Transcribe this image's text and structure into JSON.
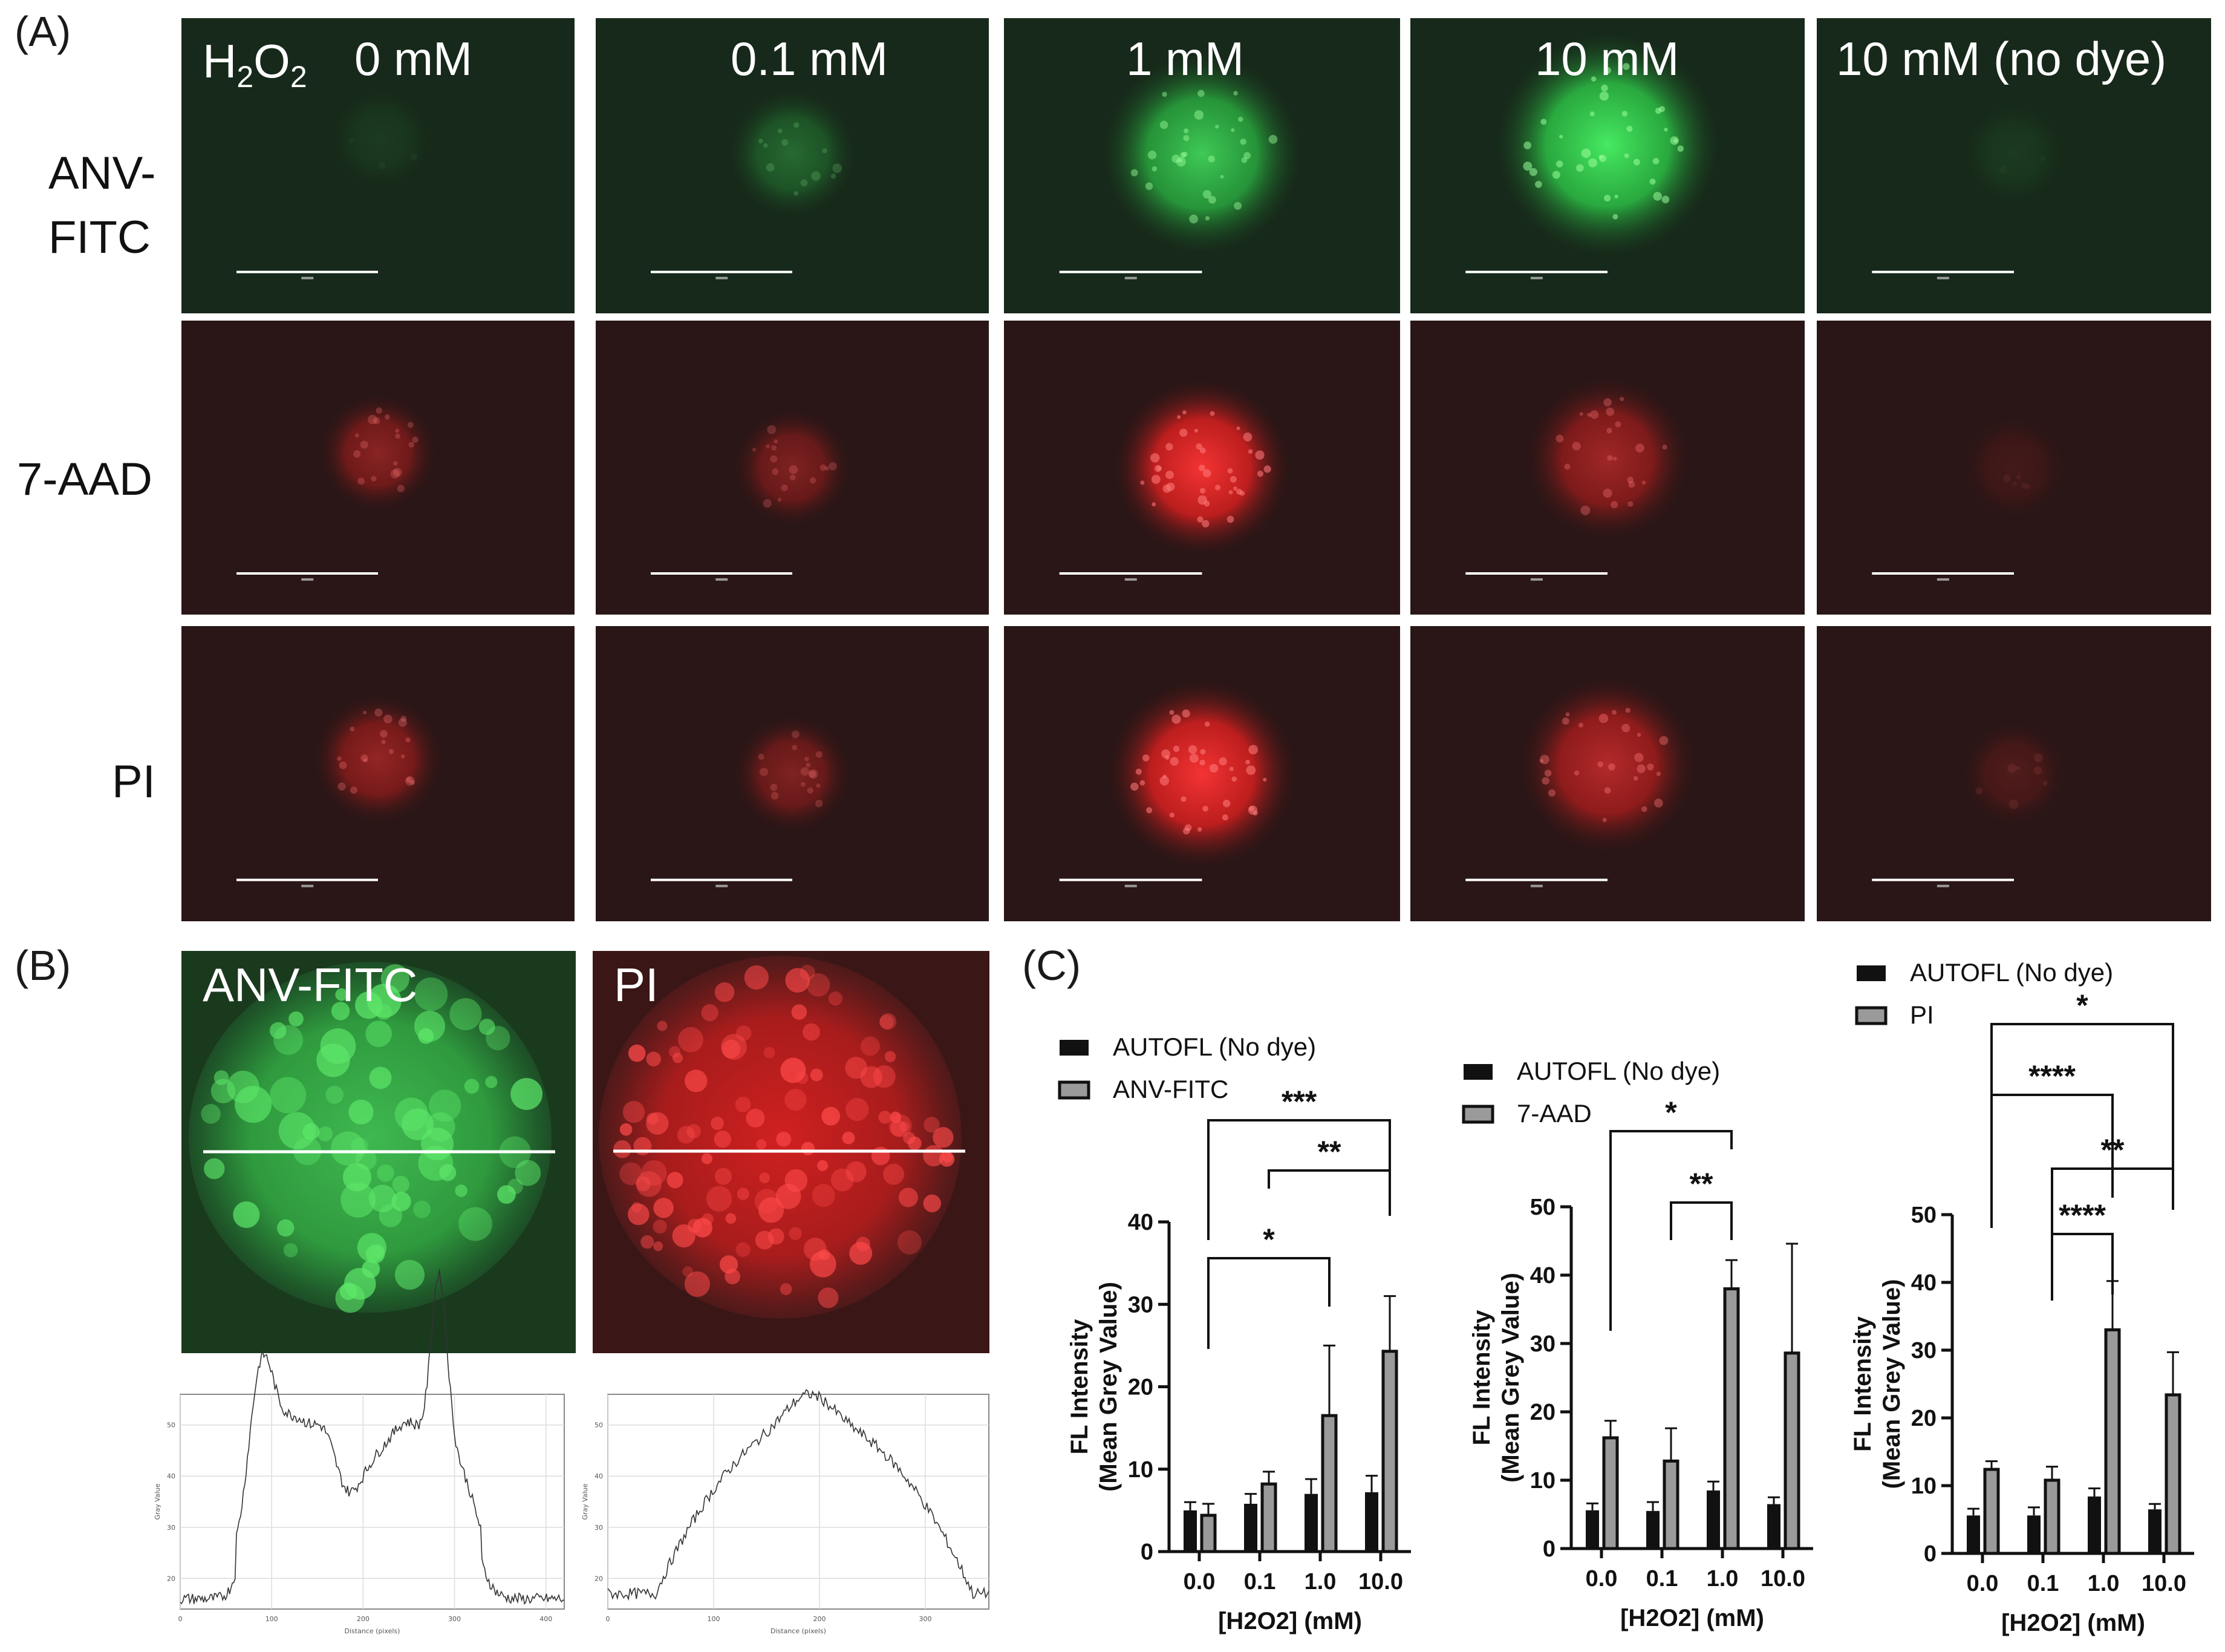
{
  "panels": {
    "a_label": "(A)",
    "b_label": "(B)",
    "c_label": "(C)"
  },
  "panel_a": {
    "h2o2_label": "H",
    "h2o2_sub1": "2",
    "h2o2_mid": "O",
    "h2o2_sub2": "2",
    "column_headers": [
      "0 mM",
      "0.1 mM",
      "1 mM",
      "10 mM",
      "10 mM (no dye)"
    ],
    "row_labels": [
      [
        "ANV-",
        "FITC"
      ],
      [
        "7-AAD"
      ],
      [
        "PI"
      ]
    ],
    "colors": {
      "green_bg": "#17291a",
      "red_bg": "#2a1616",
      "green_cell": "#3ee05a",
      "red_cell": "#ff2a2a"
    },
    "signal_levels": {
      "ANV-FITC": [
        0.08,
        0.3,
        0.75,
        0.9,
        0.05
      ],
      "7-AAD": [
        0.45,
        0.4,
        0.95,
        0.55,
        0.12
      ],
      "PI": [
        0.5,
        0.4,
        0.95,
        0.65,
        0.18
      ]
    }
  },
  "panel_b": {
    "left_label": "ANV-FITC",
    "right_label": "PI",
    "profile_left": {
      "ylabel": "Gray Value",
      "xlabel": "Distance (pixels)",
      "xticks": [
        "0",
        "100",
        "200",
        "300",
        "400"
      ],
      "yticks": [
        "20",
        "30",
        "40",
        "50"
      ]
    },
    "profile_right": {
      "ylabel": "Gray Value",
      "xlabel": "Distance (pixels)",
      "xticks": [
        "0",
        "100",
        "200",
        "300"
      ],
      "yticks": [
        "20",
        "30",
        "40",
        "50"
      ]
    }
  },
  "chart_data": [
    {
      "type": "bar",
      "categories": [
        "0.0",
        "0.1",
        "1.0",
        "10.0"
      ],
      "xlabel": "[H2O2] (mM)",
      "ylabel": [
        "FL Intensity",
        "(Mean Grey Value)"
      ],
      "ylim": [
        0,
        40
      ],
      "yticks": [
        "0",
        "10",
        "20",
        "30",
        "40"
      ],
      "series": [
        {
          "name": "AUTOFL (No dye)",
          "values": [
            5.0,
            5.8,
            7.0,
            7.2
          ],
          "errors": [
            1.0,
            1.2,
            1.8,
            2.0
          ],
          "color": "#111111"
        },
        {
          "name": "ANV-FITC",
          "values": [
            4.4,
            8.2,
            16.5,
            24.3
          ],
          "errors": [
            1.4,
            1.5,
            8.5,
            6.7
          ],
          "color": "#9a9a9a"
        }
      ],
      "significance": [
        {
          "from": 0,
          "to": 3,
          "label": "***"
        },
        {
          "from": 1,
          "to": 3,
          "label": "**"
        },
        {
          "from": 0,
          "to": 2,
          "label": "*"
        }
      ]
    },
    {
      "type": "bar",
      "categories": [
        "0.0",
        "0.1",
        "1.0",
        "10.0"
      ],
      "xlabel": "[H2O2] (mM)",
      "ylabel": [
        "FL Intensity",
        "(Mean Grey Value)"
      ],
      "ylim": [
        0,
        50
      ],
      "yticks": [
        "0",
        "10",
        "20",
        "30",
        "40",
        "50"
      ],
      "series": [
        {
          "name": "AUTOFL (No dye)",
          "values": [
            5.6,
            5.5,
            8.5,
            6.5
          ],
          "errors": [
            1.0,
            1.3,
            1.3,
            1.0
          ],
          "color": "#111111"
        },
        {
          "name": "7-AAD",
          "values": [
            16.2,
            12.8,
            38.0,
            28.6
          ],
          "errors": [
            2.5,
            4.8,
            4.2,
            16.0
          ],
          "color": "#9a9a9a"
        }
      ],
      "significance": [
        {
          "from": 0,
          "to": 2,
          "label": "*"
        },
        {
          "from": 1,
          "to": 2,
          "label": "**"
        }
      ]
    },
    {
      "type": "bar",
      "categories": [
        "0.0",
        "0.1",
        "1.0",
        "10.0"
      ],
      "xlabel": "[H2O2] (mM)",
      "ylabel": [
        "FL Intensity",
        "(Mean Grey Value)"
      ],
      "ylim": [
        0,
        50
      ],
      "yticks": [
        "0",
        "10",
        "20",
        "30",
        "40",
        "50"
      ],
      "series": [
        {
          "name": "AUTOFL (No dye)",
          "values": [
            5.6,
            5.6,
            8.4,
            6.5
          ],
          "errors": [
            1.0,
            1.2,
            1.2,
            0.8
          ],
          "color": "#111111"
        },
        {
          "name": "PI",
          "values": [
            12.4,
            10.8,
            33.0,
            23.4
          ],
          "errors": [
            1.2,
            2.0,
            7.2,
            6.3
          ],
          "color": "#9a9a9a"
        }
      ],
      "significance": [
        {
          "from": 0,
          "to": 3,
          "label": "*"
        },
        {
          "from": 0,
          "to": 2,
          "label": "****"
        },
        {
          "from": 1,
          "to": 3,
          "label": "**"
        },
        {
          "from": 1,
          "to": 2,
          "label": "****"
        }
      ]
    }
  ]
}
